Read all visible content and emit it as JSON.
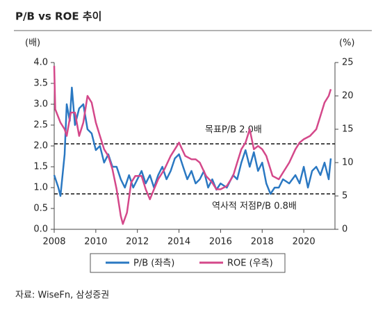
{
  "chart_data": {
    "type": "line",
    "title": "P/B vs ROE 추이",
    "y_label": "(배)",
    "y2_label": "(%)",
    "source": "자료: WiseFn, 삼성증권",
    "xlim": [
      2008,
      2021.5
    ],
    "xticks": [
      2008,
      2010,
      2012,
      2014,
      2016,
      2018,
      2020
    ],
    "ylim": [
      0,
      4
    ],
    "yticks": [
      {
        "value": 0,
        "label": "0.0"
      },
      0.5,
      {
        "value": 1,
        "label": "1.0"
      },
      1.5,
      {
        "value": 2,
        "label": "2.0"
      },
      2.5,
      {
        "value": 3,
        "label": "3.0"
      },
      3.5,
      {
        "value": 4,
        "label": "4.0"
      }
    ],
    "y2lim": [
      0,
      25
    ],
    "y2ticks": [
      0,
      5,
      10,
      15,
      20,
      25
    ],
    "reference_lines": [
      {
        "value": 2.05,
        "label": "목표P/B 2.0배"
      },
      {
        "value": 0.85,
        "label": "역사적 저점P/B 0.8배"
      }
    ],
    "series": [
      {
        "name": "P/B (좌측)",
        "color": "#2a78c2",
        "axis": "y",
        "x": [
          2008.0,
          2008.2,
          2008.3,
          2008.5,
          2008.6,
          2008.75,
          2008.85,
          2009.0,
          2009.2,
          2009.4,
          2009.6,
          2009.8,
          2010.0,
          2010.2,
          2010.4,
          2010.6,
          2010.8,
          2011.0,
          2011.2,
          2011.4,
          2011.6,
          2011.8,
          2012.0,
          2012.2,
          2012.4,
          2012.6,
          2012.8,
          2013.0,
          2013.2,
          2013.4,
          2013.6,
          2013.8,
          2014.0,
          2014.2,
          2014.4,
          2014.6,
          2014.8,
          2015.0,
          2015.2,
          2015.4,
          2015.6,
          2015.8,
          2016.0,
          2016.3,
          2016.6,
          2016.8,
          2017.0,
          2017.2,
          2017.4,
          2017.6,
          2017.8,
          2018.0,
          2018.2,
          2018.4,
          2018.6,
          2018.8,
          2019.0,
          2019.3,
          2019.6,
          2019.8,
          2020.0,
          2020.2,
          2020.4,
          2020.6,
          2020.8,
          2021.0,
          2021.1,
          2021.2,
          2021.3
        ],
        "values": [
          1.3,
          1.0,
          0.8,
          1.8,
          3.0,
          2.6,
          3.4,
          2.5,
          2.9,
          3.0,
          2.4,
          2.3,
          1.9,
          2.0,
          1.6,
          1.8,
          1.5,
          1.5,
          1.2,
          1.0,
          1.3,
          1.0,
          1.2,
          1.4,
          1.1,
          1.3,
          1.0,
          1.3,
          1.5,
          1.2,
          1.4,
          1.7,
          1.8,
          1.5,
          1.2,
          1.4,
          1.1,
          1.2,
          1.4,
          1.0,
          1.2,
          0.95,
          1.1,
          1.0,
          1.3,
          1.2,
          1.6,
          1.9,
          1.5,
          1.85,
          1.4,
          1.6,
          1.1,
          0.85,
          1.0,
          1.0,
          1.2,
          1.1,
          1.3,
          1.1,
          1.5,
          1.0,
          1.4,
          1.5,
          1.3,
          1.6,
          1.4,
          1.2,
          1.7
        ]
      },
      {
        "name": "ROE (우측)",
        "color": "#d4488a",
        "axis": "y2",
        "x": [
          2008.0,
          2008.05,
          2008.3,
          2008.5,
          2008.6,
          2008.8,
          2009.0,
          2009.2,
          2009.4,
          2009.6,
          2009.8,
          2010.0,
          2010.2,
          2010.4,
          2010.6,
          2010.8,
          2011.0,
          2011.2,
          2011.3,
          2011.5,
          2011.7,
          2011.9,
          2012.2,
          2012.4,
          2012.6,
          2012.8,
          2013.0,
          2013.3,
          2013.6,
          2013.8,
          2014.0,
          2014.3,
          2014.6,
          2014.8,
          2015.0,
          2015.3,
          2015.6,
          2015.8,
          2016.0,
          2016.3,
          2016.6,
          2016.8,
          2017.0,
          2017.2,
          2017.4,
          2017.6,
          2017.8,
          2018.0,
          2018.2,
          2018.5,
          2018.8,
          2019.0,
          2019.3,
          2019.6,
          2019.8,
          2020.0,
          2020.3,
          2020.6,
          2020.8,
          2021.0,
          2021.2,
          2021.3
        ],
        "values": [
          24.5,
          18,
          16,
          15,
          14,
          17.5,
          17.5,
          14,
          16,
          20,
          19,
          16,
          14,
          12,
          11,
          9,
          6,
          2,
          0.8,
          2.5,
          7,
          8,
          8,
          6,
          4.5,
          6,
          7.5,
          9,
          11,
          12,
          13,
          11,
          10.5,
          10.5,
          10,
          8,
          7,
          6,
          6,
          6.5,
          8,
          10,
          12,
          13,
          15,
          12,
          12.5,
          12,
          11,
          8,
          7.5,
          8.5,
          10,
          12,
          13,
          13.5,
          14,
          15,
          17,
          19,
          20,
          21
        ]
      }
    ]
  }
}
